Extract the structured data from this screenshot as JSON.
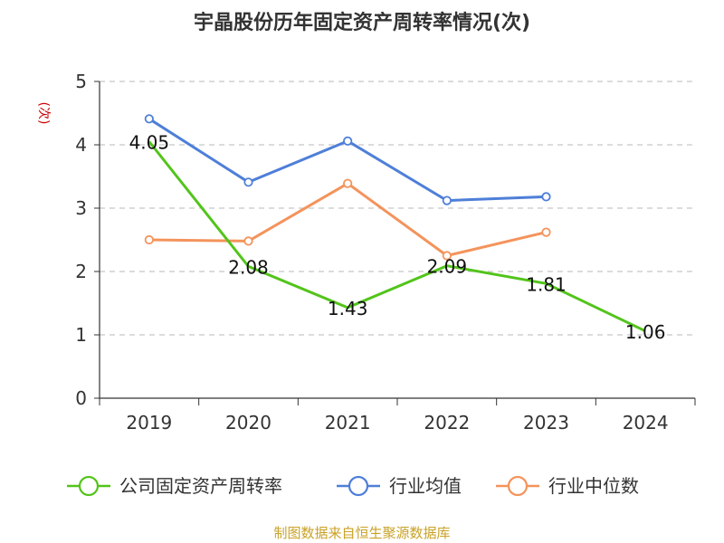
{
  "chart_data": {
    "type": "line",
    "title": "宇晶股份历年固定资产周转率情况(次)",
    "ylabel": "(次)",
    "xlabel": "",
    "categories": [
      "2019",
      "2020",
      "2021",
      "2022",
      "2023",
      "2024"
    ],
    "ylim": [
      0,
      5
    ],
    "yticks": [
      "0",
      "1",
      "2",
      "3",
      "4",
      "5"
    ],
    "grid": true,
    "legend_position": "bottom",
    "series": [
      {
        "name": "公司固定资产周转率",
        "color": "#52c41a",
        "values": [
          4.05,
          2.08,
          1.43,
          2.09,
          1.81,
          1.06
        ],
        "labels": [
          "4.05",
          "2.08",
          "1.43",
          "2.09",
          "1.81",
          "1.06"
        ],
        "show_markers": false
      },
      {
        "name": "行业均值",
        "color": "#4e7fd8",
        "values": [
          4.41,
          3.41,
          4.06,
          3.12,
          3.18,
          null
        ],
        "show_markers": true
      },
      {
        "name": "行业中位数",
        "color": "#f4935b",
        "values": [
          2.5,
          2.48,
          3.39,
          2.25,
          2.62,
          null
        ],
        "show_markers": true
      }
    ],
    "source": "制图数据来自恒生聚源数据库",
    "colors": {
      "ylabel": "#cc0000",
      "source": "#c9a227",
      "grid": "#c8c8c8",
      "axis": "#333333"
    }
  }
}
